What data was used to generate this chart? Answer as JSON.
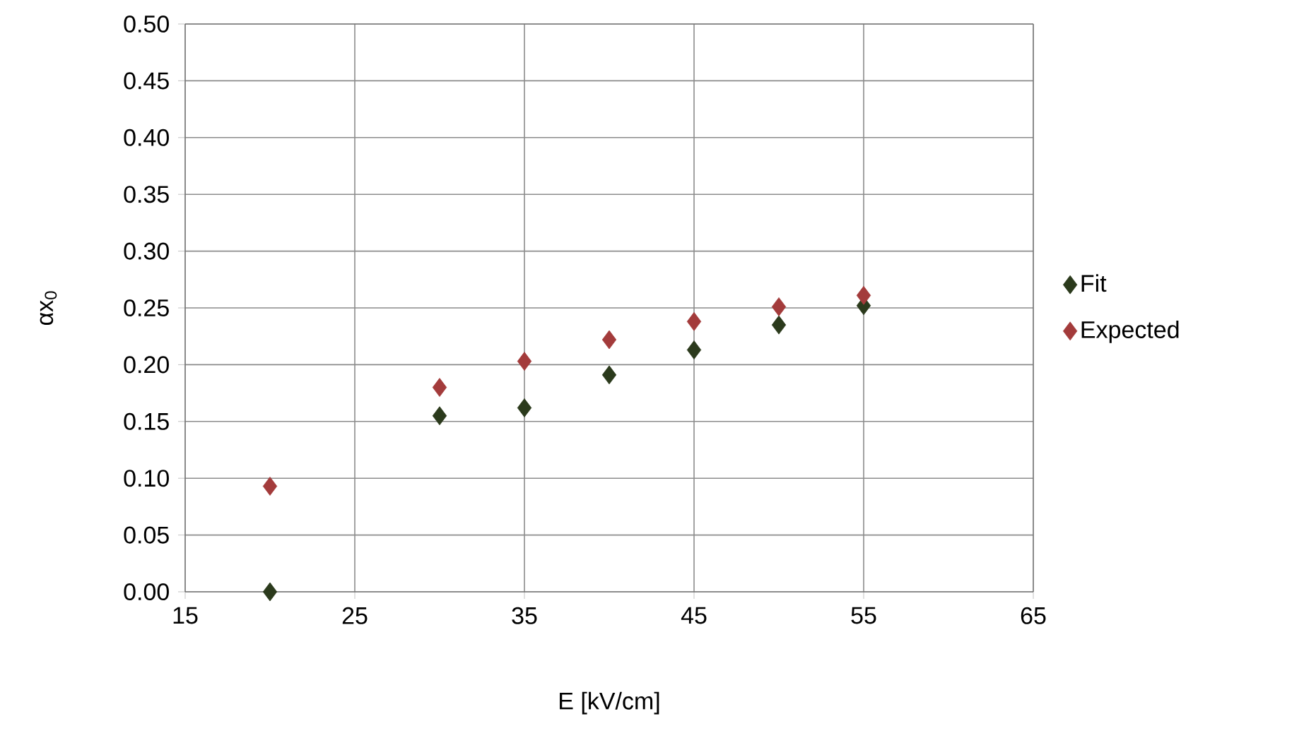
{
  "chart_data": {
    "type": "scatter",
    "xlabel": "E [kV/cm]",
    "ylabel": "αx$_{0}$",
    "series": [
      {
        "name": "Fit",
        "color": "#2b3a1c",
        "x": [
          20,
          30,
          35,
          40,
          45,
          50,
          55
        ],
        "values": [
          0.0,
          0.155,
          0.162,
          0.191,
          0.213,
          0.235,
          0.252
        ]
      },
      {
        "name": "Expected",
        "color": "#a33b3b",
        "x": [
          20,
          30,
          35,
          40,
          45,
          50,
          55
        ],
        "values": [
          0.093,
          0.18,
          0.203,
          0.222,
          0.238,
          0.251,
          0.261
        ]
      }
    ],
    "xlim": [
      15,
      65
    ],
    "xticks": [
      15,
      25,
      35,
      45,
      55,
      65
    ],
    "ylim": [
      0,
      0.5
    ],
    "yticks": [
      {
        "value": 0,
        "label": "0.00"
      },
      {
        "value": 0.05,
        "label": "0.05"
      },
      {
        "value": 0.1,
        "label": "0.10"
      },
      {
        "value": 0.15,
        "label": "0.15"
      },
      {
        "value": 0.2,
        "label": "0.20"
      },
      {
        "value": 0.25,
        "label": "0.25"
      },
      {
        "value": 0.3,
        "label": "0.30"
      },
      {
        "value": 0.35,
        "label": "0.35"
      },
      {
        "value": 0.4,
        "label": "0.40"
      },
      {
        "value": 0.45,
        "label": "0.45"
      },
      {
        "value": 0.5,
        "label": "0.50"
      }
    ],
    "grid": true,
    "legend": "right",
    "marker": "diamond"
  }
}
